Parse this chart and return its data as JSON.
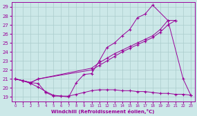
{
  "line_color": "#990099",
  "bg_color": "#cce8e8",
  "grid_color": "#aacccc",
  "xlabel": "Windchill (Refroidissement éolien,°C)",
  "xlim": [
    -0.5,
    23.5
  ],
  "ylim": [
    18.5,
    29.5
  ],
  "yticks": [
    19,
    20,
    21,
    22,
    23,
    24,
    25,
    26,
    27,
    28,
    29
  ],
  "xticks": [
    0,
    1,
    2,
    3,
    4,
    5,
    6,
    7,
    8,
    9,
    10,
    11,
    12,
    13,
    14,
    15,
    16,
    17,
    18,
    19,
    20,
    21,
    22,
    23
  ],
  "line1_x": [
    0,
    1,
    2,
    3,
    4,
    5,
    6,
    7,
    8,
    9,
    10,
    11,
    12,
    13,
    14,
    15,
    16,
    17,
    18,
    20,
    22,
    23
  ],
  "line1_y": [
    21.0,
    20.8,
    20.6,
    20.5,
    19.5,
    19.1,
    19.1,
    19.0,
    20.6,
    21.5,
    21.6,
    23.0,
    24.5,
    25.0,
    25.8,
    26.5,
    27.8,
    28.2,
    29.2,
    27.5,
    21.0,
    19.2
  ],
  "line2_x": [
    0,
    1,
    2,
    3,
    10,
    11,
    12,
    13,
    14,
    15,
    16,
    17,
    18,
    19,
    20,
    21
  ],
  "line2_y": [
    21.0,
    20.8,
    20.6,
    21.0,
    22.2,
    22.8,
    23.3,
    23.8,
    24.2,
    24.6,
    25.0,
    25.4,
    25.8,
    26.5,
    27.5,
    27.5
  ],
  "line3_x": [
    0,
    1,
    2,
    3,
    10,
    11,
    12,
    13,
    14,
    15,
    16,
    17,
    18,
    19,
    20,
    21
  ],
  "line3_y": [
    21.0,
    20.8,
    20.6,
    21.0,
    22.0,
    22.5,
    23.0,
    23.5,
    24.0,
    24.4,
    24.8,
    25.2,
    25.6,
    26.2,
    27.0,
    27.5
  ],
  "line4_x": [
    0,
    1,
    2,
    3,
    4,
    5,
    6,
    7,
    8,
    9,
    10,
    11,
    12,
    13,
    14,
    15,
    16,
    17,
    18,
    19,
    20,
    21,
    22,
    23
  ],
  "line4_y": [
    21.0,
    20.8,
    20.5,
    20.1,
    19.6,
    19.2,
    19.1,
    19.1,
    19.3,
    19.5,
    19.7,
    19.8,
    19.8,
    19.8,
    19.7,
    19.7,
    19.6,
    19.6,
    19.5,
    19.4,
    19.4,
    19.3,
    19.3,
    19.2
  ]
}
